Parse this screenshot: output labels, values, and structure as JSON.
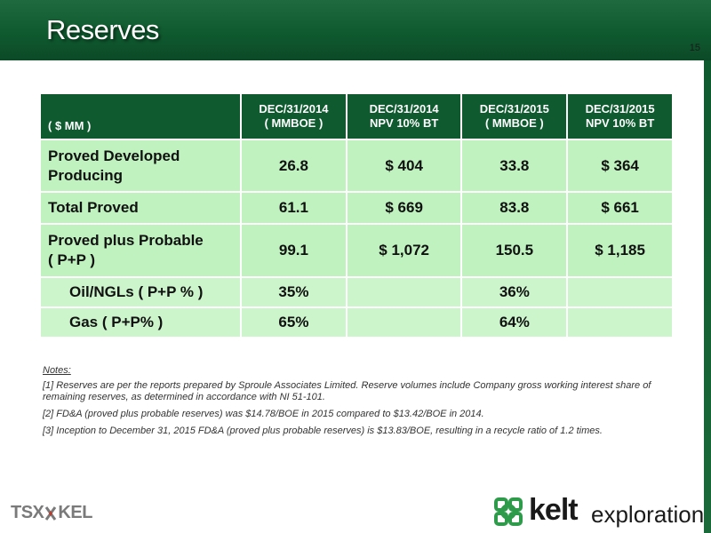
{
  "slide": {
    "title": "Reserves",
    "page_number": "15"
  },
  "table": {
    "headers": [
      "( $ MM )",
      "DEC/31/2014\n( MMBOE )",
      "DEC/31/2014\nNPV 10% BT",
      "DEC/31/2015\n( MMBOE )",
      "DEC/31/2015\nNPV 10% BT"
    ],
    "rows": [
      {
        "label": "Proved Developed\n Producing",
        "values": [
          "26.8",
          "$ 404",
          "33.8",
          "$ 364"
        ]
      },
      {
        "label": "Total  Proved",
        "values": [
          "61.1",
          "$ 669",
          "83.8",
          "$ 661"
        ]
      },
      {
        "label": "Proved plus Probable\n ( P+P )",
        "values": [
          "99.1",
          "$ 1,072",
          "150.5",
          "$ 1,185"
        ]
      },
      {
        "label": "Oil/NGLs ( P+P % )",
        "values": [
          "35%",
          "",
          "36%",
          ""
        ]
      },
      {
        "label": "Gas ( P+P% )",
        "values": [
          "65%",
          "",
          "64%",
          ""
        ]
      }
    ]
  },
  "notes": {
    "heading": "Notes:",
    "items": [
      "[1] Reserves are per the reports prepared by Sproule Associates Limited. Reserve volumes include Company gross working interest share of remaining reserves, as determined in accordance with NI 51-101.",
      "[2] FD&A (proved plus probable reserves) was $14.78/BOE in 2015 compared to $13.42/BOE in 2014.",
      "[3] Inception to December 31, 2015 FD&A (proved plus probable reserves) is $13.83/BOE, resulting in a recycle ratio of 1.2 times."
    ]
  },
  "logos": {
    "tsx_left": "TSX",
    "tsx_right": "KEL",
    "kelt_word": "kelt",
    "kelt_sub": "exploration"
  },
  "colors": {
    "brand_green": "#0f5a2f",
    "row_green": "#bff2bf",
    "sub_row_green": "#ccf5cc"
  }
}
